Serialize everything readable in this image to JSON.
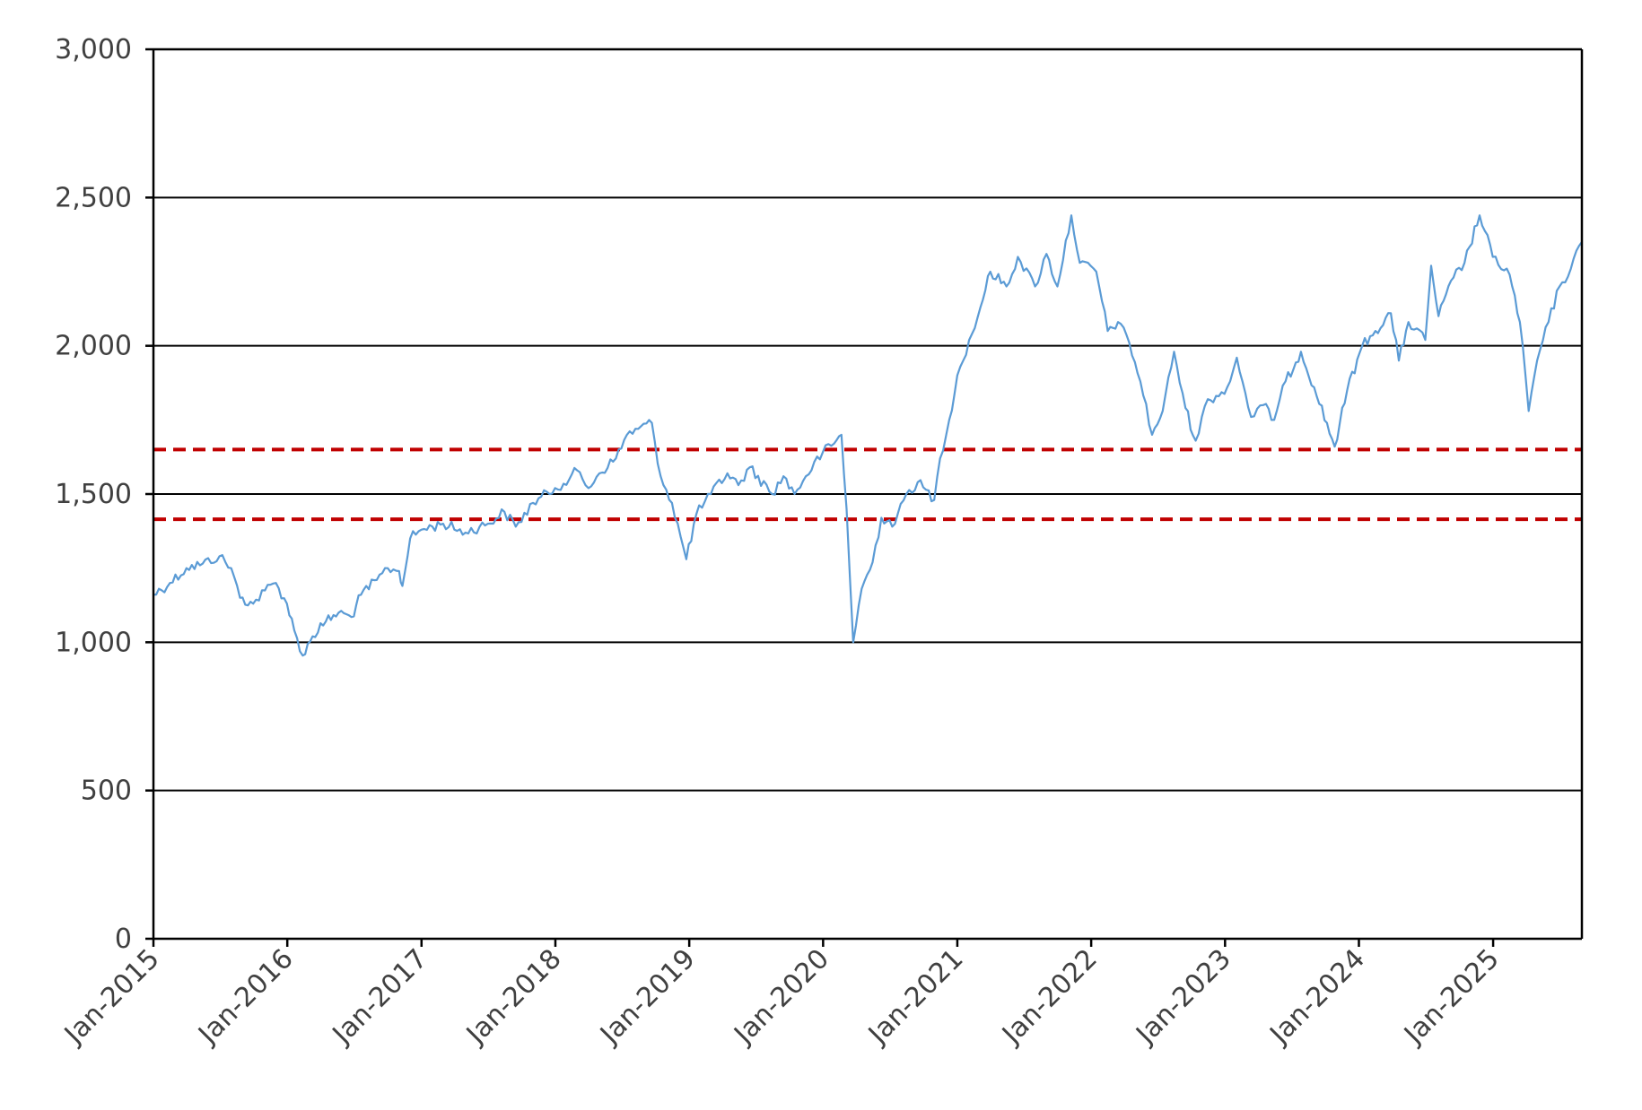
{
  "chart_data": {
    "type": "line",
    "title": "",
    "xlabel": "",
    "ylabel": "",
    "x_range": [
      "2015-01-01",
      "2025-08-31"
    ],
    "ylim": [
      0,
      3000
    ],
    "y_ticks": [
      0,
      500,
      1000,
      1500,
      2000,
      2500,
      3000
    ],
    "y_tick_labels": [
      "0",
      "500",
      "1,000",
      "1,500",
      "2,000",
      "2,500",
      "3,000"
    ],
    "x_ticks": [
      "2015-01-01",
      "2016-01-01",
      "2017-01-01",
      "2018-01-01",
      "2019-01-01",
      "2020-01-01",
      "2021-01-01",
      "2022-01-01",
      "2023-01-01",
      "2024-01-01",
      "2025-01-01"
    ],
    "x_tick_labels": [
      "Jan-2015",
      "Jan-2016",
      "Jan-2017",
      "Jan-2018",
      "Jan-2019",
      "Jan-2020",
      "Jan-2021",
      "Jan-2022",
      "Jan-2023",
      "Jan-2024",
      "Jan-2025"
    ],
    "grid": "horizontal",
    "legend": "none",
    "series": [
      {
        "color": "#5b9bd5",
        "points": [
          [
            "2015-01-01",
            1160
          ],
          [
            "2015-02-15",
            1200
          ],
          [
            "2015-04-01",
            1250
          ],
          [
            "2015-05-15",
            1265
          ],
          [
            "2015-06-30",
            1290
          ],
          [
            "2015-08-01",
            1250
          ],
          [
            "2015-08-25",
            1150
          ],
          [
            "2015-09-30",
            1130
          ],
          [
            "2015-11-01",
            1175
          ],
          [
            "2015-12-01",
            1200
          ],
          [
            "2015-12-31",
            1130
          ],
          [
            "2016-01-20",
            1040
          ],
          [
            "2016-02-12",
            955
          ],
          [
            "2016-03-10",
            1020
          ],
          [
            "2016-04-15",
            1070
          ],
          [
            "2016-05-20",
            1100
          ],
          [
            "2016-06-24",
            1085
          ],
          [
            "2016-07-20",
            1160
          ],
          [
            "2016-09-01",
            1210
          ],
          [
            "2016-10-01",
            1250
          ],
          [
            "2016-11-01",
            1240
          ],
          [
            "2016-11-10",
            1190
          ],
          [
            "2016-12-01",
            1350
          ],
          [
            "2017-01-01",
            1380
          ],
          [
            "2017-03-01",
            1400
          ],
          [
            "2017-05-01",
            1370
          ],
          [
            "2017-07-01",
            1400
          ],
          [
            "2017-08-15",
            1440
          ],
          [
            "2017-09-15",
            1390
          ],
          [
            "2017-11-01",
            1470
          ],
          [
            "2017-12-31",
            1520
          ],
          [
            "2018-02-08",
            1550
          ],
          [
            "2018-03-01",
            1580
          ],
          [
            "2018-04-01",
            1520
          ],
          [
            "2018-05-01",
            1570
          ],
          [
            "2018-06-15",
            1620
          ],
          [
            "2018-07-15",
            1700
          ],
          [
            "2018-08-15",
            1720
          ],
          [
            "2018-09-21",
            1740
          ],
          [
            "2018-10-15",
            1560
          ],
          [
            "2018-11-15",
            1470
          ],
          [
            "2018-12-24",
            1280
          ],
          [
            "2019-01-20",
            1430
          ],
          [
            "2019-03-01",
            1500
          ],
          [
            "2019-04-15",
            1570
          ],
          [
            "2019-05-15",
            1530
          ],
          [
            "2019-06-15",
            1590
          ],
          [
            "2019-08-15",
            1500
          ],
          [
            "2019-09-15",
            1560
          ],
          [
            "2019-10-15",
            1500
          ],
          [
            "2019-11-15",
            1560
          ],
          [
            "2019-12-31",
            1640
          ],
          [
            "2020-01-31",
            1670
          ],
          [
            "2020-02-20",
            1700
          ],
          [
            "2020-03-05",
            1450
          ],
          [
            "2020-03-23",
            1000
          ],
          [
            "2020-04-15",
            1180
          ],
          [
            "2020-05-15",
            1270
          ],
          [
            "2020-06-08",
            1420
          ],
          [
            "2020-07-15",
            1400
          ],
          [
            "2020-08-15",
            1500
          ],
          [
            "2020-09-15",
            1540
          ],
          [
            "2020-10-30",
            1480
          ],
          [
            "2020-11-15",
            1620
          ],
          [
            "2020-12-10",
            1750
          ],
          [
            "2021-01-01",
            1900
          ],
          [
            "2021-02-10",
            2040
          ],
          [
            "2021-03-05",
            2130
          ],
          [
            "2021-04-01",
            2250
          ],
          [
            "2021-05-15",
            2200
          ],
          [
            "2021-06-15",
            2300
          ],
          [
            "2021-08-01",
            2200
          ],
          [
            "2021-09-01",
            2310
          ],
          [
            "2021-10-01",
            2200
          ],
          [
            "2021-11-08",
            2440
          ],
          [
            "2021-12-01",
            2280
          ],
          [
            "2022-01-15",
            2250
          ],
          [
            "2022-02-15",
            2050
          ],
          [
            "2022-03-15",
            2080
          ],
          [
            "2022-04-15",
            2010
          ],
          [
            "2022-05-15",
            1880
          ],
          [
            "2022-06-16",
            1700
          ],
          [
            "2022-07-15",
            1780
          ],
          [
            "2022-08-15",
            1980
          ],
          [
            "2022-09-15",
            1790
          ],
          [
            "2022-10-13",
            1680
          ],
          [
            "2022-11-15",
            1820
          ],
          [
            "2022-12-15",
            1830
          ],
          [
            "2023-01-15",
            1880
          ],
          [
            "2023-02-02",
            1960
          ],
          [
            "2023-03-13",
            1760
          ],
          [
            "2023-04-15",
            1800
          ],
          [
            "2023-05-15",
            1750
          ],
          [
            "2023-06-15",
            1880
          ],
          [
            "2023-07-27",
            1980
          ],
          [
            "2023-09-01",
            1860
          ],
          [
            "2023-10-27",
            1660
          ],
          [
            "2023-11-30",
            1850
          ],
          [
            "2024-01-10",
            2000
          ],
          [
            "2024-02-15",
            2050
          ],
          [
            "2024-03-28",
            2110
          ],
          [
            "2024-04-19",
            1950
          ],
          [
            "2024-05-15",
            2080
          ],
          [
            "2024-06-30",
            2020
          ],
          [
            "2024-07-16",
            2270
          ],
          [
            "2024-08-05",
            2100
          ],
          [
            "2024-09-15",
            2230
          ],
          [
            "2024-10-15",
            2280
          ],
          [
            "2024-11-25",
            2440
          ],
          [
            "2024-12-31",
            2300
          ],
          [
            "2025-02-15",
            2240
          ],
          [
            "2025-03-15",
            2080
          ],
          [
            "2025-04-08",
            1780
          ],
          [
            "2025-05-01",
            1950
          ],
          [
            "2025-06-01",
            2080
          ],
          [
            "2025-07-01",
            2200
          ],
          [
            "2025-08-01",
            2260
          ],
          [
            "2025-08-31",
            2350
          ]
        ]
      }
    ],
    "reference_lines": [
      {
        "value": 1650,
        "color": "#c00000",
        "style": "dashed"
      },
      {
        "value": 1415,
        "color": "#c00000",
        "style": "dashed"
      }
    ]
  }
}
